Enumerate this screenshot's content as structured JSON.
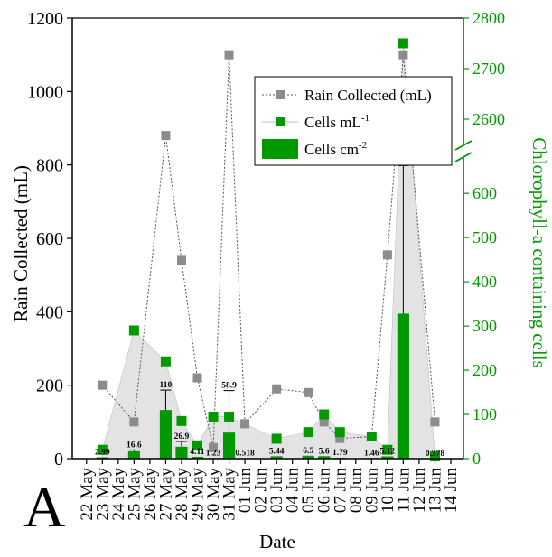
{
  "panel_label": "A",
  "chart_data": {
    "type": "bar",
    "xlabel": "Date",
    "ylabel_left": "Rain Collected (mL)",
    "ylabel_right": "Chlorophyll-a containing cells",
    "categories": [
      "22 May",
      "23 May",
      "24 May",
      "25 May",
      "26 May",
      "27 May",
      "28 May",
      "29 May",
      "30 May",
      "31 May",
      "01 Jun",
      "02 Jun",
      "03 Jun",
      "04 Jun",
      "05 Jun",
      "06 Jun",
      "07 Jun",
      "08 Jun",
      "09 Jun",
      "10 Jun",
      "11 Jun",
      "12 Jun",
      "13 Jun",
      "14 Jun"
    ],
    "left_axis": {
      "range": [
        0,
        1200
      ],
      "ticks": [
        0,
        200,
        400,
        600,
        800,
        1000,
        1200
      ]
    },
    "right_axis": {
      "lower_range": [
        0,
        680
      ],
      "lower_ticks": [
        0,
        100,
        200,
        300,
        400,
        500,
        600
      ],
      "upper_range": [
        2550,
        2800
      ],
      "upper_ticks": [
        2600,
        2700,
        2800
      ],
      "break": true
    },
    "legend": {
      "position": "top-right",
      "entries": [
        {
          "label": "Rain Collected (mL)",
          "marker": "square-dotted-line",
          "color": "#8c8c8c"
        },
        {
          "label": "Cells mL",
          "superscript": "-1",
          "marker": "square-thin-line",
          "color": "#009900"
        },
        {
          "label": "Cells cm",
          "superscript": "-2",
          "marker": "bar",
          "color": "#009900"
        }
      ]
    },
    "series": [
      {
        "name": "Rain Collected (mL)",
        "axis": "left",
        "color": "#8c8c8c",
        "points": [
          [
            "23 May",
            200
          ],
          [
            "25 May",
            100
          ],
          [
            "27 May",
            880
          ],
          [
            "28 May",
            540
          ],
          [
            "29 May",
            220
          ],
          [
            "30 May",
            30
          ],
          [
            "31 May",
            1100
          ],
          [
            "01 Jun",
            95
          ],
          [
            "03 Jun",
            190
          ],
          [
            "05 Jun",
            180
          ],
          [
            "06 Jun",
            100
          ],
          [
            "07 Jun",
            55
          ],
          [
            "09 Jun",
            60
          ],
          [
            "10 Jun",
            555
          ],
          [
            "11 Jun",
            1100
          ],
          [
            "13 Jun",
            100
          ]
        ]
      },
      {
        "name": "Cells mL-1",
        "axis": "right",
        "color": "#009900",
        "points": [
          [
            "23 May",
            20
          ],
          [
            "25 May",
            290
          ],
          [
            "27 May",
            220
          ],
          [
            "28 May",
            85
          ],
          [
            "29 May",
            30
          ],
          [
            "30 May",
            95
          ],
          [
            "31 May",
            95
          ],
          [
            "03 Jun",
            45
          ],
          [
            "05 Jun",
            60
          ],
          [
            "06 Jun",
            100
          ],
          [
            "07 Jun",
            60
          ],
          [
            "09 Jun",
            50
          ],
          [
            "10 Jun",
            20
          ],
          [
            "11 Jun",
            2750
          ],
          [
            "13 Jun",
            5
          ]
        ]
      },
      {
        "name": "Cells cm-2",
        "axis": "right",
        "color": "#009900",
        "bars": [
          {
            "date": "23 May",
            "value": 2.99,
            "label": "2.99",
            "error": 0
          },
          {
            "date": "25 May",
            "value": 16.6,
            "label": "16.6",
            "error": 3
          },
          {
            "date": "27 May",
            "value": 110,
            "label": "110",
            "error": 45
          },
          {
            "date": "28 May",
            "value": 26.9,
            "label": "26.9",
            "error": 12
          },
          {
            "date": "29 May",
            "value": 4.11,
            "label": "4.11",
            "error": 0
          },
          {
            "date": "30 May",
            "value": 1.23,
            "label": "1.23",
            "error": 0
          },
          {
            "date": "31 May",
            "value": 58.9,
            "label": "58.9",
            "error": 95
          },
          {
            "date": "01 Jun",
            "value": 0.518,
            "label": "0.518",
            "error": 0
          },
          {
            "date": "03 Jun",
            "value": 5.44,
            "label": "5.44",
            "error": 0
          },
          {
            "date": "05 Jun",
            "value": 6.5,
            "label": "6.5",
            "error": 0
          },
          {
            "date": "06 Jun",
            "value": 5.6,
            "label": "5.6",
            "error": 0
          },
          {
            "date": "07 Jun",
            "value": 1.79,
            "label": "1.79",
            "error": 0
          },
          {
            "date": "09 Jun",
            "value": 1.46,
            "label": "1.46",
            "error": 0
          },
          {
            "date": "10 Jun",
            "value": 5.12,
            "label": "5.12",
            "error": 0
          },
          {
            "date": "11 Jun",
            "value": 328,
            "label": "328",
            "error": 335
          },
          {
            "date": "13 Jun",
            "value": 0.378,
            "label": "0.378",
            "error": 0
          }
        ]
      }
    ]
  }
}
